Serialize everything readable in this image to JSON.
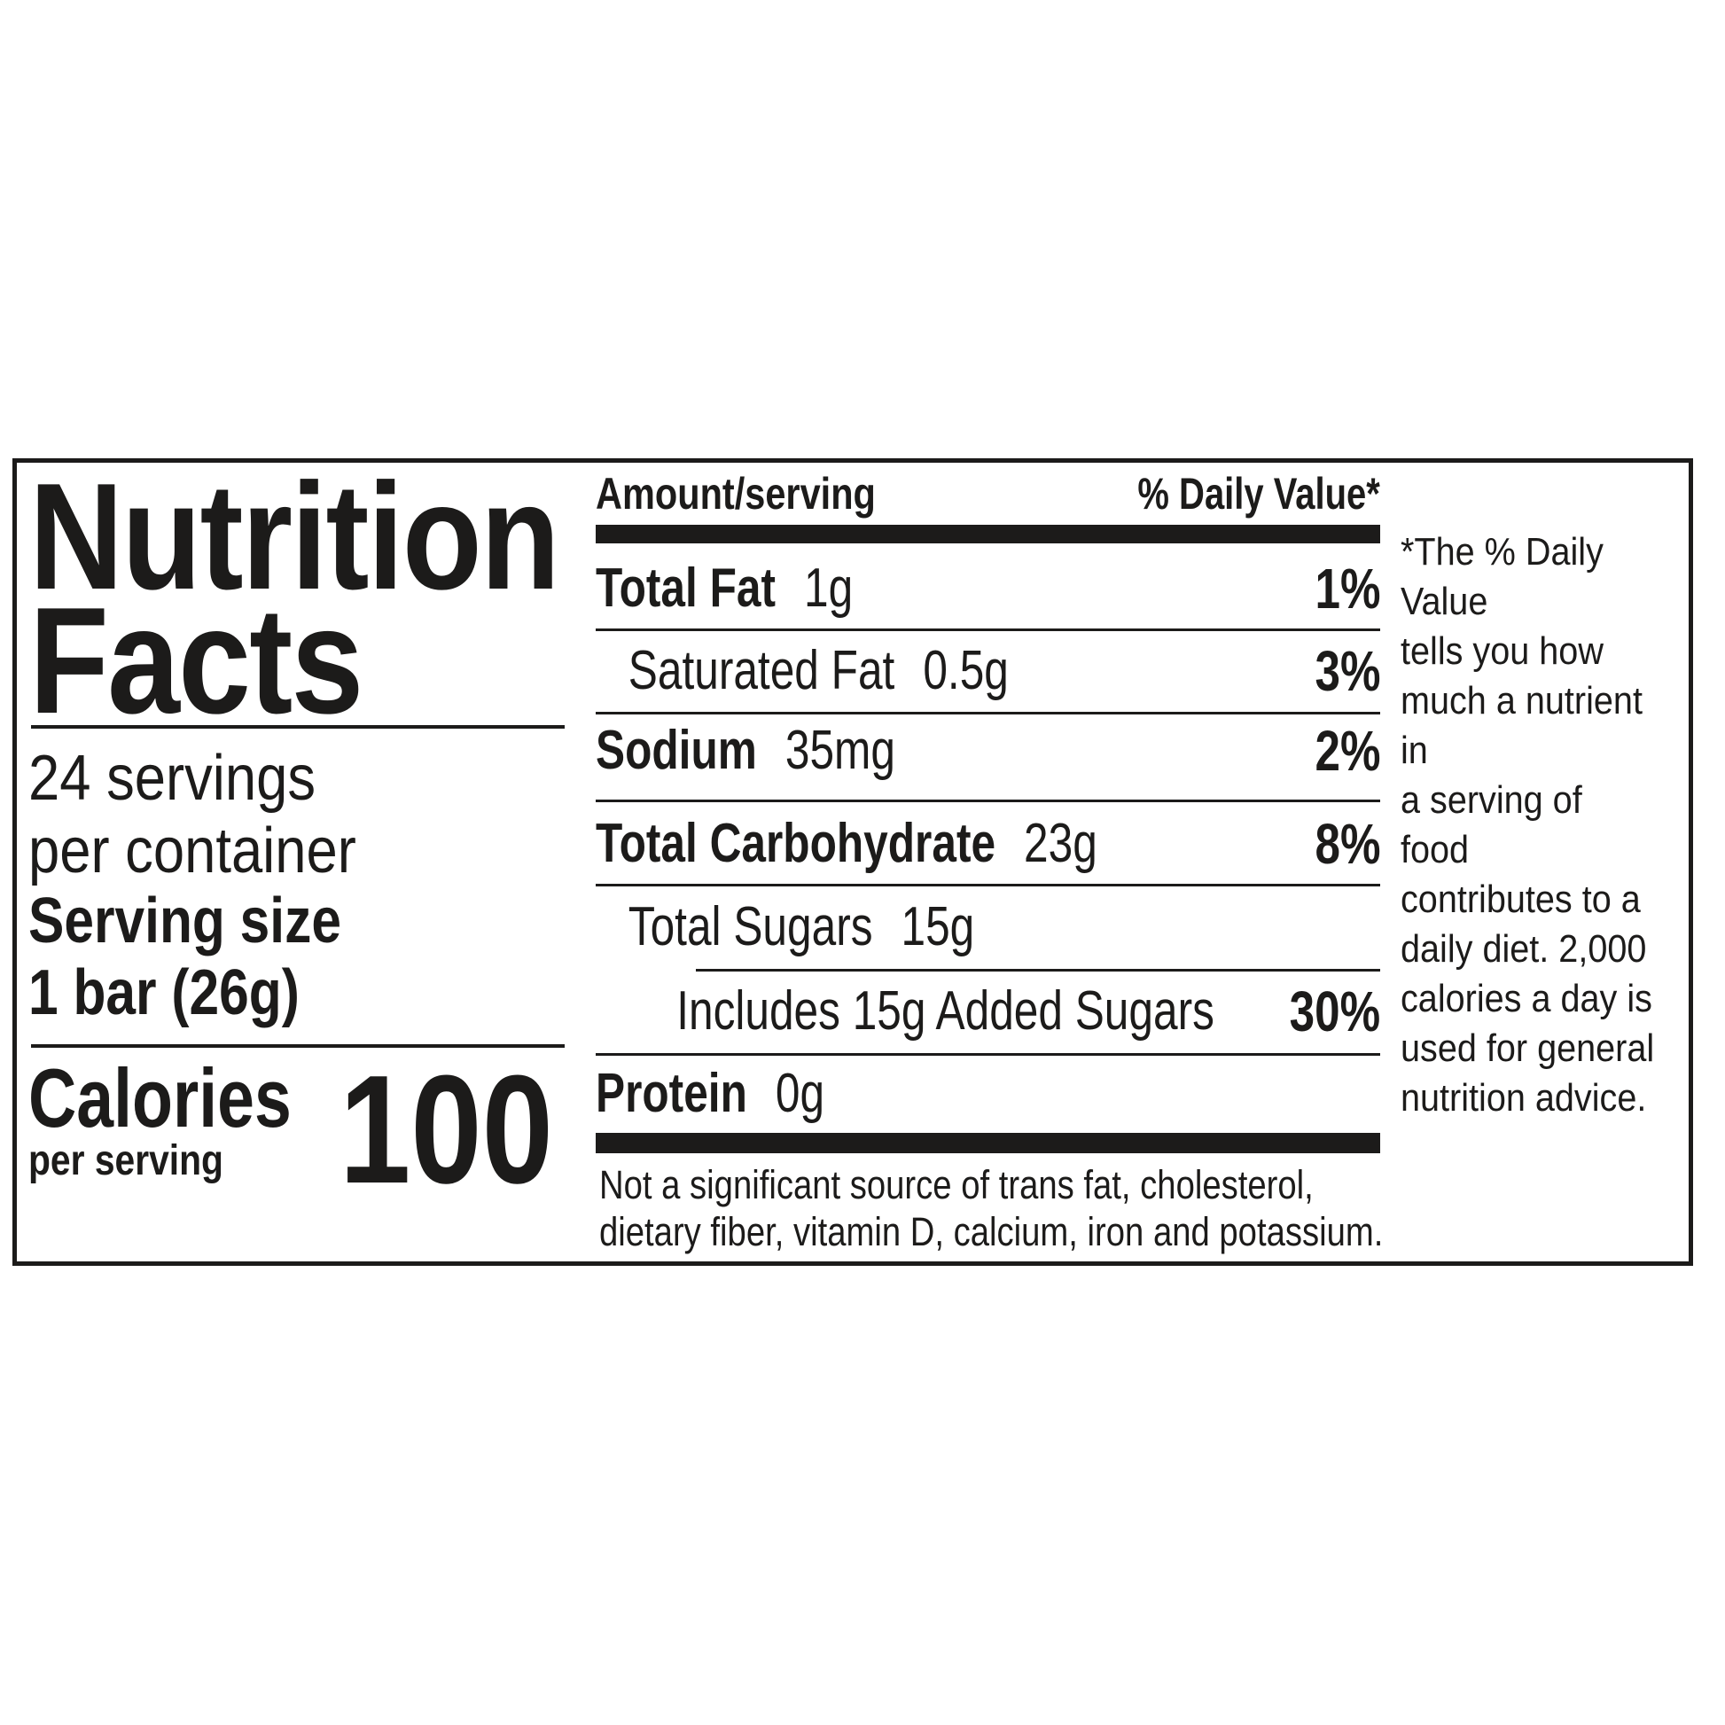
{
  "colors": {
    "ink": "#1c1b1a",
    "paper": "#ffffff"
  },
  "label": {
    "title_line1": "Nutrition",
    "title_line2": "Facts",
    "servings_per_container_line1": "24 servings",
    "servings_per_container_line2": "per container",
    "serving_size_label": "Serving size",
    "serving_size_value": "1 bar (26g)",
    "calories_label": "Calories",
    "calories_sublabel": "per serving",
    "calories_value": "100",
    "table": {
      "amount_header": "Amount/serving",
      "dv_header": "% Daily Value*",
      "rows": [
        {
          "name": "Total Fat",
          "value": "1g",
          "dv": "1%"
        },
        {
          "name": "Saturated Fat",
          "value": "0.5g",
          "dv": "3%"
        },
        {
          "name": "Sodium",
          "value": "35mg",
          "dv": "2%"
        },
        {
          "name": "Total Carbohydrate",
          "value": "23g",
          "dv": "8%"
        },
        {
          "name": "Total Sugars",
          "value": "15g",
          "dv": ""
        },
        {
          "name": "Includes 15g Added Sugars",
          "value": "",
          "dv": "30%"
        },
        {
          "name": "Protein",
          "value": "0g",
          "dv": ""
        }
      ],
      "insignificant_note_lines": [
        "Not a significant source of trans fat, cholesterol,",
        "dietary fiber, vitamin D, calcium, iron and potassium."
      ]
    },
    "dv_footnote_lines": [
      "*The % Daily Value",
      "tells you how",
      "much a nutrient in",
      "a serving of food",
      "contributes to a",
      "daily diet. 2,000",
      "calories a day is",
      "used for general",
      "nutrition advice."
    ]
  }
}
